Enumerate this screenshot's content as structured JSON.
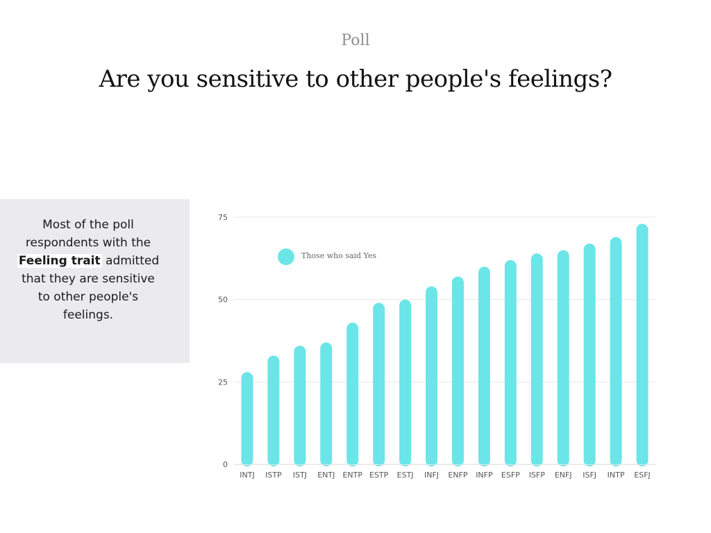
{
  "header": {
    "eyebrow": "Poll",
    "title": "Are you sensitive to other people's feelings?"
  },
  "note": {
    "before": "Most of the poll respondents with the ",
    "highlight": "Feeling trait",
    "after": " admitted that they are sensitive to other people's feelings."
  },
  "colors": {
    "bar": "#6ce5e8",
    "grid": "#e6e6e6",
    "panel": "#ebebee"
  },
  "chart_data": {
    "type": "bar",
    "categories": [
      "INTJ",
      "ISTP",
      "ISTJ",
      "ENTJ",
      "ENTP",
      "ESTP",
      "ESTJ",
      "INFJ",
      "ENFP",
      "INFP",
      "ESFP",
      "ISFP",
      "ENFJ",
      "ISFJ",
      "INTP",
      "ESFJ"
    ],
    "series": [
      {
        "name": "Those who said Yes",
        "values": [
          28,
          33,
          36,
          37,
          43,
          49,
          50,
          54,
          57,
          60,
          62,
          64,
          65,
          67,
          69,
          73
        ]
      }
    ],
    "yticks": [
      0,
      25,
      50,
      75
    ],
    "ylim": [
      0,
      75
    ],
    "grid": true,
    "legend": "top-left"
  }
}
